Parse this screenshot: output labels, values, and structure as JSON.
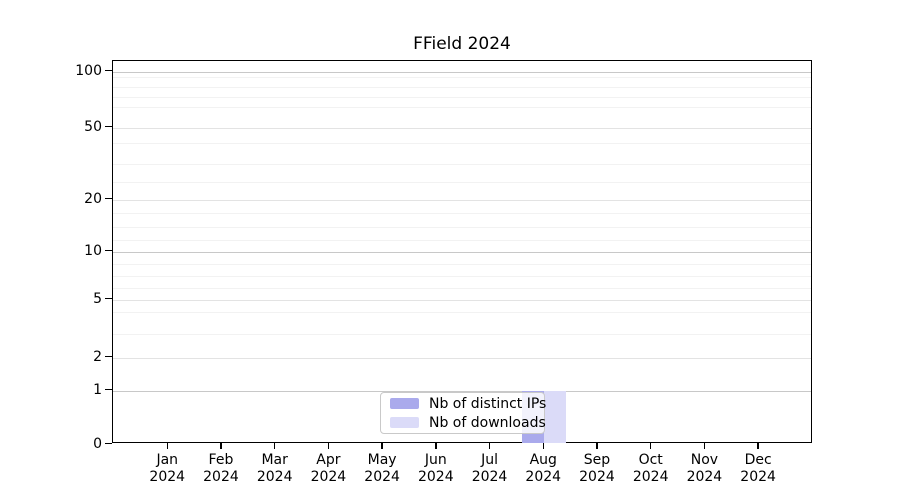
{
  "chart_data": {
    "type": "bar",
    "title": "FField 2024",
    "categories": [
      "Jan 2024",
      "Feb 2024",
      "Mar 2024",
      "Apr 2024",
      "May 2024",
      "Jun 2024",
      "Jul 2024",
      "Aug 2024",
      "Sep 2024",
      "Oct 2024",
      "Nov 2024",
      "Dec 2024"
    ],
    "series": [
      {
        "name": "Nb of distinct IPs",
        "color": "#aaaaec",
        "values": [
          0,
          0,
          0,
          0,
          0,
          0,
          0,
          1,
          0,
          0,
          0,
          0
        ]
      },
      {
        "name": "Nb of downloads",
        "color": "#dbdbf8",
        "values": [
          0,
          0,
          0,
          0,
          0,
          0,
          0,
          1,
          0,
          0,
          0,
          0
        ]
      }
    ],
    "xlabel": "",
    "ylabel": "",
    "y_ticks": [
      0,
      1,
      2,
      5,
      10,
      20,
      50,
      100
    ],
    "ylim": [
      0,
      110
    ],
    "y_scale": "symlog-like",
    "grid": "horizontal-only",
    "legend_position": "bottom-center-inside",
    "plot_border_color": "#000000",
    "grid_major_color": "#c8c8c8",
    "grid_minor_color": "#f2f2f2"
  }
}
